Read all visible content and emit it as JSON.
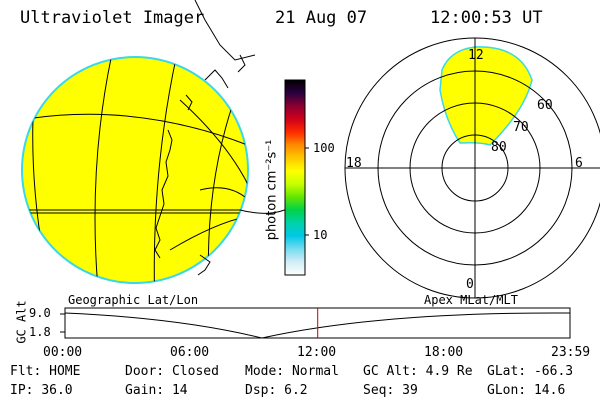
{
  "header": {
    "instrument": "Ultraviolet Imager",
    "date": "21 Aug 07",
    "time": "12:00:53 UT"
  },
  "colorbar": {
    "label": "photon cm⁻²s⁻¹",
    "ticks": [
      "100",
      "10"
    ],
    "colors": [
      "#000000",
      "#2a0040",
      "#8a0030",
      "#d0001a",
      "#ff2a00",
      "#ff8a00",
      "#ffc800",
      "#ffff00",
      "#c8ff00",
      "#64e600",
      "#00d24a",
      "#00d2aa",
      "#00c8e6",
      "#78dcf0",
      "#d2eef6",
      "#ffffff"
    ]
  },
  "polar": {
    "mlt_labels": [
      "12",
      "18",
      "6",
      "0"
    ],
    "lat_labels": [
      "60",
      "70",
      "80"
    ]
  },
  "image": {
    "fill_color": "#ffff00",
    "rim_color": "#38d8e8"
  },
  "timeline": {
    "left_label": "Geographic Lat/Lon",
    "right_label": "Apex MLat/MLT",
    "y_axis_title": "GC Alt",
    "y_ticks": [
      "9.0",
      "1.8"
    ],
    "x_ticks": [
      "00:00",
      "06:00",
      "12:00",
      "18:00",
      "23:59"
    ],
    "marker_time_hours": 12.01
  },
  "status": {
    "flt_label": "Flt:",
    "flt_value": "HOME",
    "door_label": "Door:",
    "door_value": "Closed",
    "mode_label": "Mode:",
    "mode_value": "Normal",
    "gcalt_label": "GC Alt:",
    "gcalt_value": "4.9 Re",
    "glat_label": "GLat:",
    "glat_value": "-66.3",
    "ip_label": "IP:",
    "ip_value": "36.0",
    "gain_label": "Gain:",
    "gain_value": "14",
    "dsp_label": "Dsp:",
    "dsp_value": "6.2",
    "seq_label": "Seq:",
    "seq_value": "39",
    "glon_label": "GLon:",
    "glon_value": "14.6"
  }
}
